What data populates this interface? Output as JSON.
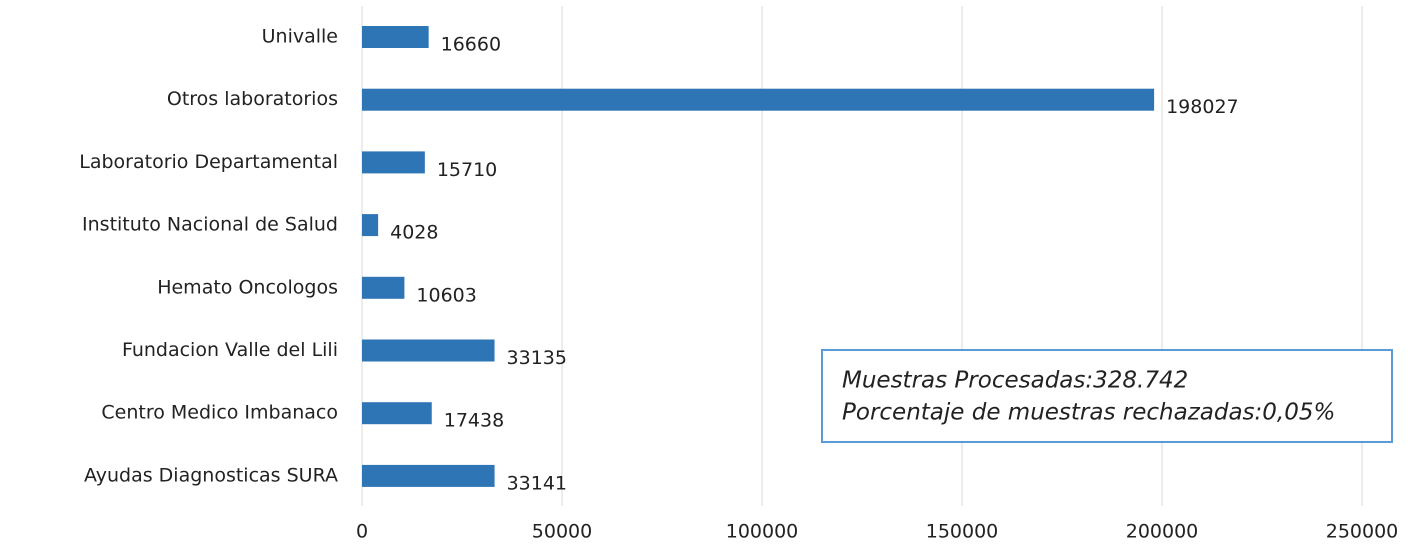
{
  "chart_data": {
    "type": "bar",
    "orientation": "horizontal",
    "categories": [
      "Univalle",
      "Otros laboratorios",
      "Laboratorio Departamental",
      "Instituto Nacional de Salud",
      "Hemato Oncologos",
      "Fundacion Valle del Lili",
      "Centro Medico Imbanaco",
      "Ayudas Diagnosticas SURA"
    ],
    "values": [
      16660,
      198027,
      15710,
      4028,
      10603,
      33135,
      17438,
      33141
    ],
    "color": "#2e75b6",
    "xlim": [
      0,
      250000
    ],
    "xticks": [
      0,
      50000,
      100000,
      150000,
      200000,
      250000
    ],
    "grid": true,
    "annotation": [
      "Muestras Procesadas:328.742",
      "Porcentaje de muestras rechazadas:0,05%"
    ]
  }
}
